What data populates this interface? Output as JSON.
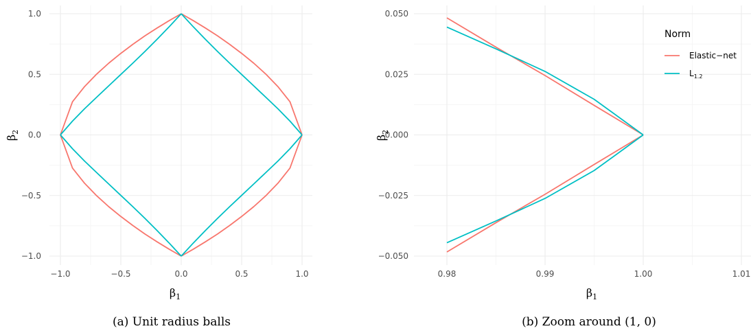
{
  "chart_data": [
    {
      "type": "line",
      "caption": "(a) Unit radius balls",
      "xlabel": "β",
      "xlabel_sub": "1",
      "ylabel": "β",
      "ylabel_sub": "2",
      "xlim": [
        -1.0,
        1.0
      ],
      "ylim": [
        -1.0,
        1.0
      ],
      "x_ticks": [
        -1.0,
        -0.5,
        0.0,
        0.5,
        1.0
      ],
      "x_tick_labels": [
        "−1.0",
        "−0.5",
        "0.0",
        "0.5",
        "1.0"
      ],
      "y_ticks": [
        -1.0,
        -0.5,
        0.0,
        0.5,
        1.0
      ],
      "y_tick_labels": [
        "−1.0",
        "−0.5",
        "0.0",
        "0.5",
        "1.0"
      ],
      "grid": true,
      "series": [
        {
          "name": "Elastic−net",
          "color": "#f8766d",
          "x": [
            0.0,
            0.1,
            0.2,
            0.3,
            0.4,
            0.5,
            0.6,
            0.7,
            0.8,
            0.9,
            1.0
          ],
          "y": [
            1.0,
            0.943,
            0.882,
            0.818,
            0.748,
            0.673,
            0.592,
            0.502,
            0.399,
            0.274,
            0.0
          ]
        },
        {
          "name": "L1.2",
          "color": "#00bfc4",
          "x": [
            0.0,
            0.1,
            0.2,
            0.3,
            0.4,
            0.5,
            0.6,
            0.7,
            0.8,
            0.9,
            1.0
          ],
          "y": [
            1.0,
            0.892,
            0.789,
            0.689,
            0.593,
            0.499,
            0.405,
            0.311,
            0.216,
            0.114,
            0.0
          ]
        }
      ]
    },
    {
      "type": "line",
      "caption": "(b) Zoom around (1, 0)",
      "xlabel": "β",
      "xlabel_sub": "1",
      "ylabel": "β",
      "ylabel_sub": "2",
      "xlim": [
        0.98,
        1.01
      ],
      "ylim": [
        -0.05,
        0.05
      ],
      "x_ticks": [
        0.98,
        0.99,
        1.0,
        1.01
      ],
      "x_tick_labels": [
        "0.98",
        "0.99",
        "1.00",
        "1.01"
      ],
      "y_ticks": [
        -0.05,
        -0.025,
        0.0,
        0.025,
        0.05
      ],
      "y_tick_labels": [
        "−0.050",
        "−0.025",
        "0.000",
        "0.025",
        "0.050"
      ],
      "grid": true,
      "legend": {
        "title": "Norm",
        "position": "top-right",
        "entries": [
          {
            "label": "Elastic−net",
            "color": "#f8766d"
          },
          {
            "label": "L",
            "sub": "1.2",
            "color": "#00bfc4"
          }
        ]
      },
      "series": [
        {
          "name": "Elastic−net",
          "color": "#f8766d",
          "x": [
            0.98,
            0.985,
            0.99,
            0.995,
            1.0
          ],
          "y": [
            0.0483,
            0.0362,
            0.0245,
            0.0122,
            0.0
          ]
        },
        {
          "name": "L1.2",
          "color": "#00bfc4",
          "x": [
            0.98,
            0.985,
            0.99,
            0.995,
            1.0
          ],
          "y": [
            0.0445,
            0.0355,
            0.0262,
            0.0147,
            0.0
          ]
        }
      ]
    }
  ]
}
